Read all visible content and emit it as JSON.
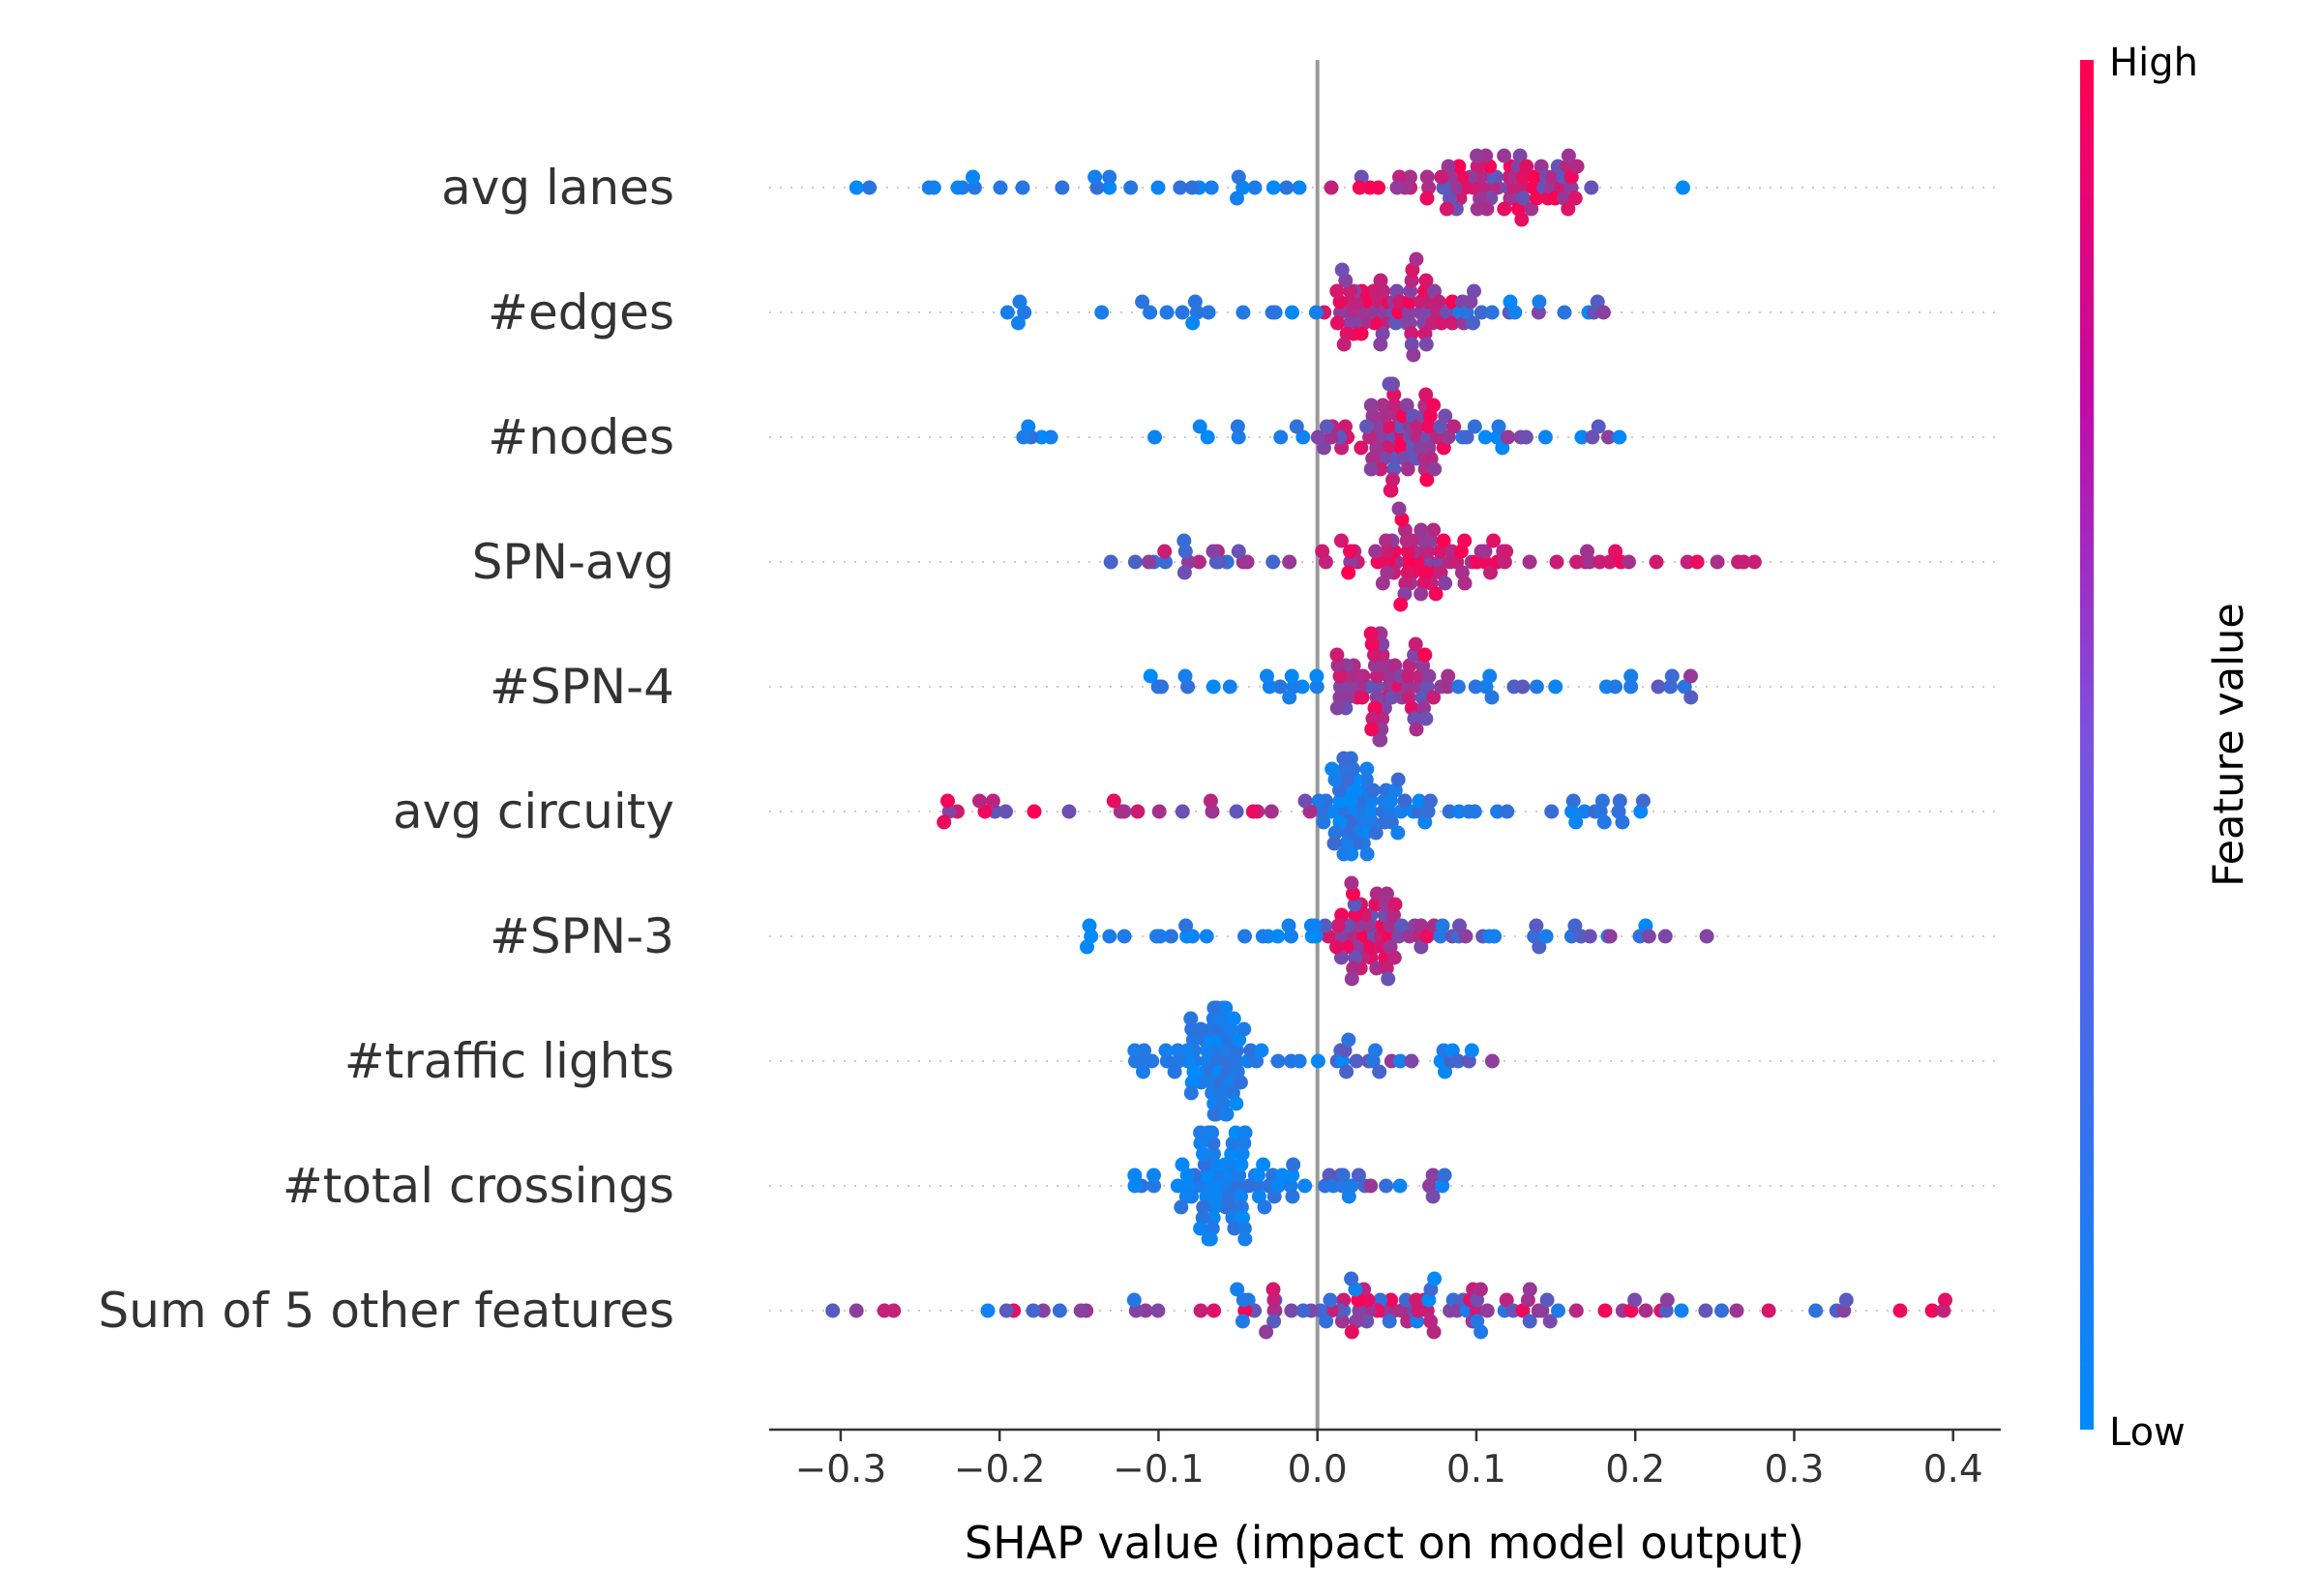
{
  "chart_data": {
    "type": "scatter",
    "subtype": "shap-beeswarm",
    "xlabel": "SHAP value (impact on model output)",
    "xlim": [
      -0.345,
      0.43
    ],
    "xticks": [
      -0.3,
      -0.2,
      -0.1,
      0.0,
      0.1,
      0.2,
      0.3,
      0.4
    ],
    "xtick_labels": [
      "−0.3",
      "−0.2",
      "−0.1",
      "0.0",
      "0.1",
      "0.2",
      "0.3",
      "0.4"
    ],
    "zero_line": true,
    "grid": false,
    "colorbar": {
      "title": "Feature value",
      "high_label": "High",
      "low_label": "Low",
      "low_color": "#008bfb",
      "high_color": "#ff0051"
    },
    "features": [
      {
        "name": "avg lanes",
        "min": -0.29,
        "max": 0.23,
        "cluster": 0.12,
        "spread": 0.03,
        "colorMode": "posHigh",
        "n": 110
      },
      {
        "name": "#edges",
        "min": -0.195,
        "max": 0.18,
        "cluster": 0.045,
        "spread": 0.02,
        "colorMode": "posHigh",
        "n": 105
      },
      {
        "name": "#nodes",
        "min": -0.185,
        "max": 0.19,
        "cluster": 0.05,
        "spread": 0.02,
        "colorMode": "posHigh",
        "n": 105
      },
      {
        "name": "SPN-avg",
        "min": -0.13,
        "max": 0.275,
        "cluster": 0.07,
        "spread": 0.025,
        "colorMode": "mixedHigh",
        "n": 110
      },
      {
        "name": "#SPN-4",
        "min": -0.105,
        "max": 0.235,
        "cluster": 0.045,
        "spread": 0.02,
        "colorMode": "posHigh",
        "n": 105
      },
      {
        "name": "avg circuity",
        "min": -0.235,
        "max": 0.205,
        "cluster": 0.03,
        "spread": 0.02,
        "colorMode": "negHigh",
        "n": 110
      },
      {
        "name": "#SPN-3",
        "min": -0.145,
        "max": 0.245,
        "cluster": 0.035,
        "spread": 0.02,
        "colorMode": "posHigh",
        "n": 105
      },
      {
        "name": "#traffic lights",
        "min": -0.115,
        "max": 0.11,
        "cluster": -0.07,
        "spread": 0.012,
        "colorMode": "posHigh",
        "n": 100
      },
      {
        "name": "#total crossings",
        "min": -0.115,
        "max": 0.08,
        "cluster": -0.06,
        "spread": 0.012,
        "colorMode": "posHigh",
        "n": 100
      },
      {
        "name": "Sum of 5 other features",
        "min": -0.305,
        "max": 0.395,
        "cluster": 0.05,
        "spread": 0.06,
        "colorMode": "mixed",
        "n": 120
      }
    ]
  }
}
